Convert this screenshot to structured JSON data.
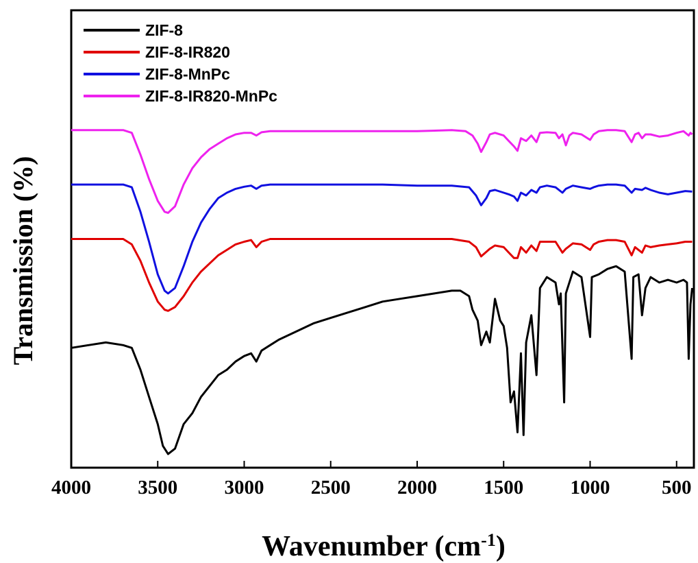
{
  "chart_data": {
    "type": "line",
    "xlabel": "Wavenumber (cm",
    "xlabel_sup": "-1",
    "xlabel_close": ")",
    "ylabel": "Transmission (%)",
    "xlim": [
      4000,
      400
    ],
    "x_ticks": [
      4000,
      3500,
      3000,
      2500,
      2000,
      1500,
      1000,
      500
    ],
    "y_ticks": [],
    "grid": false,
    "legend_position": "top-left",
    "series": [
      {
        "name": "ZIF-8",
        "color": "#000000",
        "points": [
          [
            4000,
            1.0
          ],
          [
            3900,
            1.05
          ],
          [
            3800,
            1.1
          ],
          [
            3700,
            1.05
          ],
          [
            3650,
            1.0
          ],
          [
            3600,
            0.6
          ],
          [
            3550,
            0.1
          ],
          [
            3500,
            -0.4
          ],
          [
            3470,
            -0.8
          ],
          [
            3440,
            -0.95
          ],
          [
            3400,
            -0.85
          ],
          [
            3350,
            -0.4
          ],
          [
            3300,
            -0.2
          ],
          [
            3250,
            0.1
          ],
          [
            3200,
            0.3
          ],
          [
            3150,
            0.5
          ],
          [
            3100,
            0.6
          ],
          [
            3050,
            0.75
          ],
          [
            3000,
            0.85
          ],
          [
            2960,
            0.9
          ],
          [
            2930,
            0.75
          ],
          [
            2900,
            0.95
          ],
          [
            2850,
            1.05
          ],
          [
            2800,
            1.15
          ],
          [
            2700,
            1.3
          ],
          [
            2600,
            1.45
          ],
          [
            2500,
            1.55
          ],
          [
            2400,
            1.65
          ],
          [
            2300,
            1.75
          ],
          [
            2200,
            1.85
          ],
          [
            2100,
            1.9
          ],
          [
            2000,
            1.95
          ],
          [
            1900,
            2.0
          ],
          [
            1800,
            2.05
          ],
          [
            1750,
            2.05
          ],
          [
            1700,
            1.95
          ],
          [
            1680,
            1.7
          ],
          [
            1650,
            1.5
          ],
          [
            1630,
            1.05
          ],
          [
            1600,
            1.3
          ],
          [
            1580,
            1.1
          ],
          [
            1550,
            1.9
          ],
          [
            1520,
            1.5
          ],
          [
            1500,
            1.4
          ],
          [
            1480,
            1.0
          ],
          [
            1460,
            0.0
          ],
          [
            1440,
            0.2
          ],
          [
            1420,
            -0.55
          ],
          [
            1400,
            0.9
          ],
          [
            1385,
            -0.6
          ],
          [
            1370,
            1.1
          ],
          [
            1340,
            1.6
          ],
          [
            1310,
            0.5
          ],
          [
            1290,
            2.1
          ],
          [
            1250,
            2.3
          ],
          [
            1200,
            2.2
          ],
          [
            1180,
            1.8
          ],
          [
            1170,
            2.0
          ],
          [
            1150,
            0.0
          ],
          [
            1140,
            2.0
          ],
          [
            1100,
            2.4
          ],
          [
            1050,
            2.3
          ],
          [
            1000,
            1.2
          ],
          [
            990,
            2.3
          ],
          [
            950,
            2.35
          ],
          [
            900,
            2.45
          ],
          [
            850,
            2.5
          ],
          [
            800,
            2.4
          ],
          [
            760,
            0.8
          ],
          [
            750,
            2.3
          ],
          [
            720,
            2.35
          ],
          [
            700,
            1.6
          ],
          [
            680,
            2.1
          ],
          [
            650,
            2.3
          ],
          [
            600,
            2.2
          ],
          [
            550,
            2.25
          ],
          [
            500,
            2.2
          ],
          [
            460,
            2.25
          ],
          [
            440,
            2.2
          ],
          [
            430,
            0.8
          ],
          [
            420,
            1.8
          ],
          [
            410,
            2.1
          ]
        ]
      },
      {
        "name": "ZIF-8-IR820",
        "color": "#e00000",
        "points": [
          [
            4000,
            3.0
          ],
          [
            3800,
            3.0
          ],
          [
            3700,
            3.0
          ],
          [
            3650,
            2.9
          ],
          [
            3600,
            2.6
          ],
          [
            3550,
            2.2
          ],
          [
            3500,
            1.85
          ],
          [
            3460,
            1.7
          ],
          [
            3440,
            1.68
          ],
          [
            3400,
            1.75
          ],
          [
            3350,
            1.95
          ],
          [
            3300,
            2.2
          ],
          [
            3250,
            2.4
          ],
          [
            3200,
            2.55
          ],
          [
            3150,
            2.7
          ],
          [
            3100,
            2.8
          ],
          [
            3050,
            2.9
          ],
          [
            3000,
            2.95
          ],
          [
            2960,
            2.98
          ],
          [
            2930,
            2.85
          ],
          [
            2900,
            2.95
          ],
          [
            2850,
            3.0
          ],
          [
            2800,
            3.0
          ],
          [
            2500,
            3.0
          ],
          [
            2200,
            3.0
          ],
          [
            2000,
            3.0
          ],
          [
            1800,
            3.0
          ],
          [
            1700,
            2.95
          ],
          [
            1660,
            2.85
          ],
          [
            1630,
            2.68
          ],
          [
            1580,
            2.82
          ],
          [
            1550,
            2.88
          ],
          [
            1500,
            2.85
          ],
          [
            1470,
            2.75
          ],
          [
            1440,
            2.65
          ],
          [
            1420,
            2.65
          ],
          [
            1400,
            2.85
          ],
          [
            1370,
            2.75
          ],
          [
            1340,
            2.88
          ],
          [
            1310,
            2.78
          ],
          [
            1290,
            2.95
          ],
          [
            1250,
            2.95
          ],
          [
            1200,
            2.95
          ],
          [
            1160,
            2.75
          ],
          [
            1140,
            2.82
          ],
          [
            1100,
            2.92
          ],
          [
            1050,
            2.9
          ],
          [
            1000,
            2.8
          ],
          [
            980,
            2.9
          ],
          [
            950,
            2.95
          ],
          [
            900,
            2.98
          ],
          [
            850,
            2.98
          ],
          [
            800,
            2.95
          ],
          [
            760,
            2.7
          ],
          [
            740,
            2.85
          ],
          [
            700,
            2.75
          ],
          [
            680,
            2.88
          ],
          [
            650,
            2.85
          ],
          [
            600,
            2.88
          ],
          [
            550,
            2.9
          ],
          [
            500,
            2.92
          ],
          [
            450,
            2.95
          ],
          [
            410,
            2.95
          ]
        ]
      },
      {
        "name": "ZIF-8-MnPc",
        "color": "#1010e0",
        "points": [
          [
            4000,
            4.0
          ],
          [
            3800,
            4.0
          ],
          [
            3700,
            4.0
          ],
          [
            3650,
            3.95
          ],
          [
            3600,
            3.5
          ],
          [
            3550,
            2.95
          ],
          [
            3500,
            2.35
          ],
          [
            3460,
            2.05
          ],
          [
            3440,
            2.0
          ],
          [
            3400,
            2.1
          ],
          [
            3350,
            2.5
          ],
          [
            3300,
            2.95
          ],
          [
            3250,
            3.3
          ],
          [
            3200,
            3.55
          ],
          [
            3150,
            3.75
          ],
          [
            3100,
            3.85
          ],
          [
            3050,
            3.92
          ],
          [
            3000,
            3.96
          ],
          [
            2960,
            3.98
          ],
          [
            2930,
            3.92
          ],
          [
            2900,
            3.98
          ],
          [
            2850,
            4.0
          ],
          [
            2500,
            4.0
          ],
          [
            2200,
            4.0
          ],
          [
            2000,
            3.98
          ],
          [
            1800,
            3.98
          ],
          [
            1700,
            3.95
          ],
          [
            1660,
            3.8
          ],
          [
            1630,
            3.62
          ],
          [
            1600,
            3.75
          ],
          [
            1580,
            3.88
          ],
          [
            1550,
            3.9
          ],
          [
            1500,
            3.85
          ],
          [
            1470,
            3.82
          ],
          [
            1440,
            3.78
          ],
          [
            1420,
            3.7
          ],
          [
            1400,
            3.85
          ],
          [
            1370,
            3.8
          ],
          [
            1340,
            3.9
          ],
          [
            1310,
            3.85
          ],
          [
            1290,
            3.95
          ],
          [
            1250,
            3.98
          ],
          [
            1200,
            3.95
          ],
          [
            1160,
            3.85
          ],
          [
            1140,
            3.92
          ],
          [
            1100,
            3.98
          ],
          [
            1050,
            3.95
          ],
          [
            1000,
            3.92
          ],
          [
            980,
            3.95
          ],
          [
            950,
            3.98
          ],
          [
            900,
            4.0
          ],
          [
            850,
            4.0
          ],
          [
            800,
            3.98
          ],
          [
            760,
            3.85
          ],
          [
            740,
            3.92
          ],
          [
            700,
            3.9
          ],
          [
            680,
            3.94
          ],
          [
            650,
            3.9
          ],
          [
            600,
            3.85
          ],
          [
            550,
            3.82
          ],
          [
            500,
            3.85
          ],
          [
            450,
            3.88
          ],
          [
            410,
            3.87
          ]
        ]
      },
      {
        "name": "ZIF-8-IR820-MnPc",
        "color": "#ee22ee",
        "points": [
          [
            4000,
            5.0
          ],
          [
            3800,
            5.0
          ],
          [
            3700,
            5.0
          ],
          [
            3650,
            4.95
          ],
          [
            3600,
            4.55
          ],
          [
            3550,
            4.1
          ],
          [
            3500,
            3.7
          ],
          [
            3460,
            3.5
          ],
          [
            3440,
            3.48
          ],
          [
            3400,
            3.6
          ],
          [
            3350,
            4.0
          ],
          [
            3300,
            4.3
          ],
          [
            3250,
            4.5
          ],
          [
            3200,
            4.65
          ],
          [
            3150,
            4.75
          ],
          [
            3100,
            4.85
          ],
          [
            3050,
            4.92
          ],
          [
            3000,
            4.95
          ],
          [
            2960,
            4.95
          ],
          [
            2930,
            4.9
          ],
          [
            2900,
            4.96
          ],
          [
            2850,
            4.98
          ],
          [
            2500,
            4.98
          ],
          [
            2200,
            4.98
          ],
          [
            2000,
            4.98
          ],
          [
            1800,
            5.0
          ],
          [
            1720,
            4.98
          ],
          [
            1680,
            4.9
          ],
          [
            1650,
            4.75
          ],
          [
            1630,
            4.6
          ],
          [
            1600,
            4.78
          ],
          [
            1580,
            4.92
          ],
          [
            1550,
            4.95
          ],
          [
            1500,
            4.9
          ],
          [
            1470,
            4.8
          ],
          [
            1440,
            4.7
          ],
          [
            1420,
            4.62
          ],
          [
            1400,
            4.85
          ],
          [
            1370,
            4.8
          ],
          [
            1340,
            4.9
          ],
          [
            1310,
            4.78
          ],
          [
            1290,
            4.95
          ],
          [
            1250,
            4.96
          ],
          [
            1200,
            4.95
          ],
          [
            1180,
            4.85
          ],
          [
            1160,
            4.92
          ],
          [
            1140,
            4.72
          ],
          [
            1120,
            4.9
          ],
          [
            1100,
            4.95
          ],
          [
            1050,
            4.92
          ],
          [
            1000,
            4.82
          ],
          [
            980,
            4.92
          ],
          [
            950,
            4.98
          ],
          [
            900,
            5.0
          ],
          [
            850,
            5.0
          ],
          [
            800,
            4.98
          ],
          [
            760,
            4.78
          ],
          [
            740,
            4.92
          ],
          [
            720,
            4.95
          ],
          [
            700,
            4.85
          ],
          [
            680,
            4.92
          ],
          [
            650,
            4.92
          ],
          [
            600,
            4.88
          ],
          [
            550,
            4.9
          ],
          [
            500,
            4.95
          ],
          [
            460,
            4.98
          ],
          [
            430,
            4.9
          ],
          [
            420,
            4.95
          ],
          [
            410,
            4.92
          ]
        ]
      }
    ]
  }
}
